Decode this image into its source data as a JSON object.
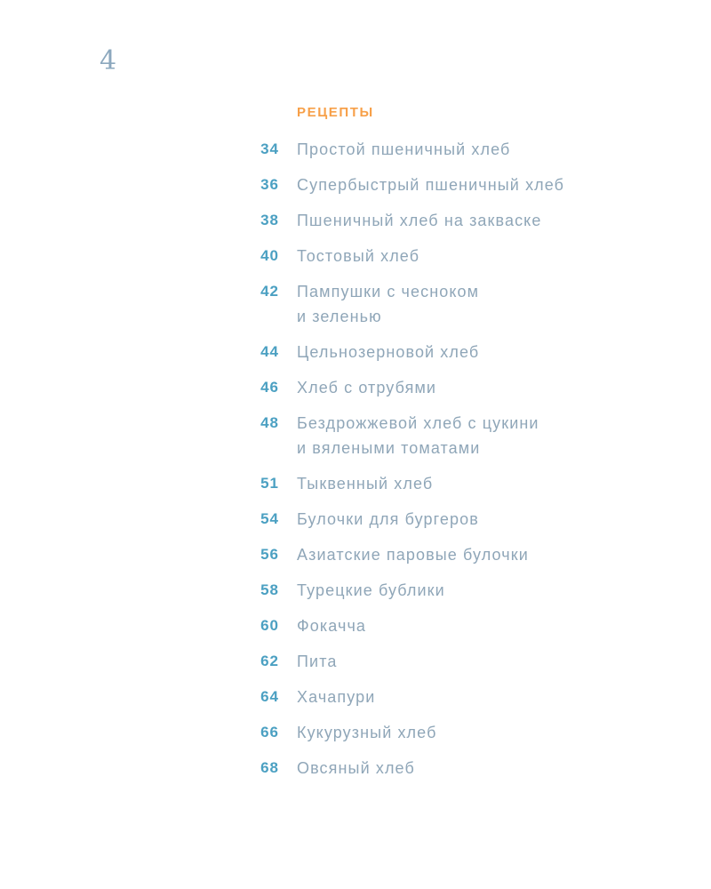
{
  "page": {
    "folio": "4"
  },
  "toc": {
    "title": "РЕЦЕПТЫ",
    "entries": [
      {
        "page": "34",
        "title": "Простой пшеничный хлеб"
      },
      {
        "page": "36",
        "title": "Супербыстрый пшеничный хлеб"
      },
      {
        "page": "38",
        "title": "Пшеничный хлеб на закваске"
      },
      {
        "page": "40",
        "title": "Тостовый хлеб"
      },
      {
        "page": "42",
        "title": "Пампушки с чесноком\nи зеленью"
      },
      {
        "page": "44",
        "title": "Цельнозерновой хлеб"
      },
      {
        "page": "46",
        "title": "Хлеб с отрубями"
      },
      {
        "page": "48",
        "title": "Бездрожжевой хлеб с цукини\nи вялеными томатами"
      },
      {
        "page": "51",
        "title": "Тыквенный хлеб"
      },
      {
        "page": "54",
        "title": "Булочки для бургеров"
      },
      {
        "page": "56",
        "title": "Азиатские паровые булочки"
      },
      {
        "page": "58",
        "title": "Турецкие бублики"
      },
      {
        "page": "60",
        "title": "Фокачча"
      },
      {
        "page": "62",
        "title": "Пита"
      },
      {
        "page": "64",
        "title": "Хачапури"
      },
      {
        "page": "66",
        "title": "Кукурузный хлеб"
      },
      {
        "page": "68",
        "title": "Овсяный хлеб"
      }
    ]
  },
  "colors": {
    "accent_orange": "#f7a049",
    "entry_number_teal": "#4ba0c2",
    "entry_text_gray_blue": "#8fa6b8",
    "folio_steel_blue": "#8ca8be",
    "background": "#ffffff"
  }
}
